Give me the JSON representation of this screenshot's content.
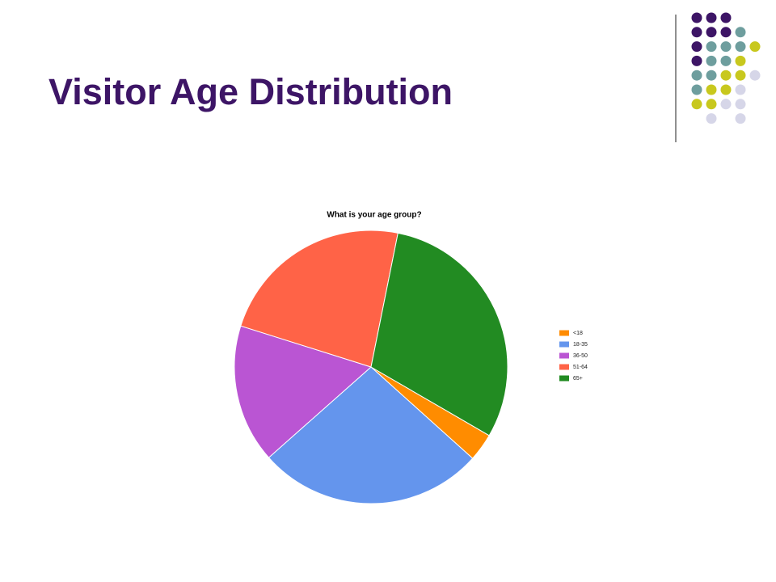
{
  "slide_title": "Visitor Age Distribution",
  "chart_data": {
    "type": "pie",
    "title": "What is your age group?",
    "categories": [
      "<18",
      "18-35",
      "36-50",
      "51-64",
      "65+"
    ],
    "values": [
      3.3,
      26.8,
      16.4,
      23.3,
      30.2
    ],
    "colors": [
      "#ff8c00",
      "#6495ed",
      "#ba55d3",
      "#ff6347",
      "#228b22"
    ],
    "legend": "right"
  }
}
